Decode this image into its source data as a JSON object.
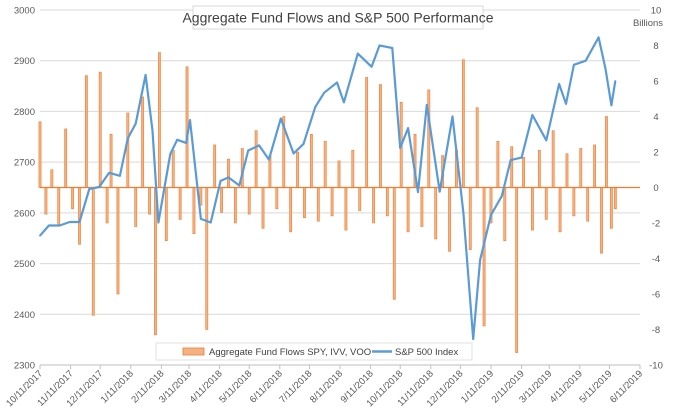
{
  "chart_data": {
    "type": "bar+line",
    "title": "Aggregate Fund Flows and S&P 500 Performance",
    "right_axis_label": "Billions",
    "left_axis": {
      "range": [
        2300,
        3000
      ],
      "ticks": [
        "2300",
        "2400",
        "2500",
        "2600",
        "2700",
        "2800",
        "2900",
        "3000"
      ]
    },
    "right_axis": {
      "range": [
        -10,
        10
      ],
      "ticks": [
        "-10",
        "-8",
        "-6",
        "-4",
        "-2",
        "0",
        "2",
        "4",
        "6",
        "8",
        "10"
      ]
    },
    "x_axis": {
      "range": [
        "10/11/2017",
        "6/11/2019"
      ],
      "ticks": [
        "10/11/2017",
        "11/11/2017",
        "12/11/2017",
        "1/11/2018",
        "2/11/2018",
        "3/11/2018",
        "4/11/2018",
        "5/11/2018",
        "6/11/2018",
        "7/11/2018",
        "8/11/2018",
        "9/11/2018",
        "10/11/2018",
        "11/11/2018",
        "12/11/2018",
        "1/11/2019",
        "2/11/2019",
        "3/11/2019",
        "4/11/2019",
        "5/11/2019",
        "6/11/2019"
      ]
    },
    "legend": {
      "position": "bottom",
      "entries": [
        "Aggregate Fund Flows SPY, IVV, VOO",
        "S&P 500 Index"
      ]
    },
    "grid": "horizontal",
    "colors": {
      "flows": "#ED7D31",
      "flows_fill": "#F4B183",
      "index": "#5B9BD5",
      "grid": "#D9D9D9",
      "axis_text": "#595959",
      "zero_line": "#ED7D31"
    },
    "series": [
      {
        "name": "S&P 500 Index",
        "axis": "left",
        "type": "line",
        "points": [
          [
            "10/11/2017",
            2555
          ],
          [
            "10/20/2017",
            2575
          ],
          [
            "10/31/2017",
            2575
          ],
          [
            "11/10/2017",
            2582
          ],
          [
            "11/20/2017",
            2582
          ],
          [
            "11/30/2017",
            2647
          ],
          [
            "12/10/2017",
            2651
          ],
          [
            "12/20/2017",
            2679
          ],
          [
            "12/31/2017",
            2673
          ],
          [
            "1/8/2018",
            2747
          ],
          [
            "1/16/2018",
            2776
          ],
          [
            "1/26/2018",
            2872
          ],
          [
            "2/2/2018",
            2762
          ],
          [
            "2/8/2018",
            2581
          ],
          [
            "2/20/2018",
            2716
          ],
          [
            "2/27/2018",
            2744
          ],
          [
            "3/8/2018",
            2738
          ],
          [
            "3/12/2018",
            2783
          ],
          [
            "3/23/2018",
            2588
          ],
          [
            "4/2/2018",
            2581
          ],
          [
            "4/12/2018",
            2663
          ],
          [
            "4/20/2018",
            2670
          ],
          [
            "5/1/2018",
            2654
          ],
          [
            "5/10/2018",
            2723
          ],
          [
            "5/21/2018",
            2733
          ],
          [
            "5/31/2018",
            2705
          ],
          [
            "6/12/2018",
            2786
          ],
          [
            "6/25/2018",
            2717
          ],
          [
            "7/5/2018",
            2736
          ],
          [
            "7/17/2018",
            2809
          ],
          [
            "7/26/2018",
            2837
          ],
          [
            "8/8/2018",
            2857
          ],
          [
            "8/15/2018",
            2818
          ],
          [
            "8/29/2018",
            2914
          ],
          [
            "9/12/2018",
            2888
          ],
          [
            "9/20/2018",
            2930
          ],
          [
            "10/3/2018",
            2925
          ],
          [
            "10/11/2018",
            2728
          ],
          [
            "10/19/2018",
            2767
          ],
          [
            "10/29/2018",
            2641
          ],
          [
            "11/7/2018",
            2813
          ],
          [
            "11/20/2018",
            2642
          ],
          [
            "12/3/2018",
            2790
          ],
          [
            "12/14/2018",
            2600
          ],
          [
            "12/24/2018",
            2351
          ],
          [
            "12/31/2018",
            2507
          ],
          [
            "1/11/2019",
            2596
          ],
          [
            "1/22/2019",
            2633
          ],
          [
            "1/31/2019",
            2704
          ],
          [
            "2/11/2019",
            2709
          ],
          [
            "2/22/2019",
            2793
          ],
          [
            "3/8/2019",
            2743
          ],
          [
            "3/21/2019",
            2854
          ],
          [
            "3/28/2019",
            2815
          ],
          [
            "4/5/2019",
            2892
          ],
          [
            "4/17/2019",
            2900
          ],
          [
            "4/30/2019",
            2946
          ],
          [
            "5/7/2019",
            2884
          ],
          [
            "5/13/2019",
            2812
          ],
          [
            "5/17/2019",
            2860
          ]
        ]
      },
      {
        "name": "Aggregate Fund Flows SPY, IVV, VOO",
        "axis": "right",
        "type": "bar",
        "points": [
          [
            "10/11/2017",
            3.7
          ],
          [
            "10/17/2017",
            -1.5
          ],
          [
            "10/23/2017",
            1.0
          ],
          [
            "10/30/2017",
            -2.1
          ],
          [
            "11/6/2017",
            3.3
          ],
          [
            "11/13/2017",
            -1.2
          ],
          [
            "11/20/2017",
            -3.2
          ],
          [
            "11/27/2017",
            6.3
          ],
          [
            "12/4/2017",
            -7.2
          ],
          [
            "12/11/2017",
            6.5
          ],
          [
            "12/18/2017",
            -2.0
          ],
          [
            "12/22/2017",
            3.0
          ],
          [
            "12/29/2017",
            -6.0
          ],
          [
            "1/8/2018",
            4.2
          ],
          [
            "1/16/2018",
            -2.2
          ],
          [
            "1/23/2018",
            5.1
          ],
          [
            "1/30/2018",
            -1.5
          ],
          [
            "2/5/2018",
            -8.3
          ],
          [
            "2/9/2018",
            7.6
          ],
          [
            "2/16/2018",
            -3.0
          ],
          [
            "2/23/2018",
            2.1
          ],
          [
            "3/2/2018",
            -1.8
          ],
          [
            "3/9/2018",
            6.8
          ],
          [
            "3/16/2018",
            -2.6
          ],
          [
            "3/23/2018",
            -1.0
          ],
          [
            "3/29/2018",
            -8.0
          ],
          [
            "4/6/2018",
            2.4
          ],
          [
            "4/13/2018",
            -1.4
          ],
          [
            "4/20/2018",
            1.6
          ],
          [
            "4/27/2018",
            -2.0
          ],
          [
            "5/4/2018",
            2.2
          ],
          [
            "5/11/2018",
            -1.5
          ],
          [
            "5/18/2018",
            3.2
          ],
          [
            "5/25/2018",
            -2.3
          ],
          [
            "6/1/2018",
            1.8
          ],
          [
            "6/8/2018",
            -1.2
          ],
          [
            "6/15/2018",
            4.0
          ],
          [
            "6/22/2018",
            -2.5
          ],
          [
            "6/29/2018",
            2.0
          ],
          [
            "7/6/2018",
            -1.7
          ],
          [
            "7/13/2018",
            3.0
          ],
          [
            "7/20/2018",
            -1.9
          ],
          [
            "7/27/2018",
            2.6
          ],
          [
            "8/3/2018",
            -1.6
          ],
          [
            "8/10/2018",
            1.5
          ],
          [
            "8/17/2018",
            -2.4
          ],
          [
            "8/24/2018",
            2.1
          ],
          [
            "8/31/2018",
            -1.3
          ],
          [
            "9/7/2018",
            6.2
          ],
          [
            "9/14/2018",
            -2.0
          ],
          [
            "9/21/2018",
            5.8
          ],
          [
            "9/28/2018",
            -1.6
          ],
          [
            "10/5/2018",
            -6.3
          ],
          [
            "10/12/2018",
            4.8
          ],
          [
            "10/19/2018",
            -2.5
          ],
          [
            "10/26/2018",
            3.0
          ],
          [
            "11/2/2018",
            -2.2
          ],
          [
            "11/9/2018",
            5.5
          ],
          [
            "11/16/2018",
            -2.9
          ],
          [
            "11/23/2018",
            1.8
          ],
          [
            "11/30/2018",
            -3.6
          ],
          [
            "12/7/2018",
            2.1
          ],
          [
            "12/14/2018",
            7.2
          ],
          [
            "12/21/2018",
            -3.5
          ],
          [
            "12/28/2018",
            4.5
          ],
          [
            "1/4/2019",
            -7.8
          ],
          [
            "1/11/2019",
            -2.0
          ],
          [
            "1/18/2019",
            2.6
          ],
          [
            "1/25/2019",
            -3.0
          ],
          [
            "2/1/2019",
            2.3
          ],
          [
            "2/6/2019",
            -9.3
          ],
          [
            "2/13/2019",
            1.7
          ],
          [
            "2/22/2019",
            -2.4
          ],
          [
            "3/1/2019",
            2.1
          ],
          [
            "3/8/2019",
            -1.8
          ],
          [
            "3/15/2019",
            3.2
          ],
          [
            "3/22/2019",
            -2.5
          ],
          [
            "3/29/2019",
            1.9
          ],
          [
            "4/5/2019",
            -1.6
          ],
          [
            "4/12/2019",
            2.2
          ],
          [
            "4/19/2019",
            -1.9
          ],
          [
            "4/26/2019",
            2.4
          ],
          [
            "5/3/2019",
            -3.7
          ],
          [
            "5/8/2019",
            4.0
          ],
          [
            "5/13/2019",
            -2.3
          ],
          [
            "5/17/2019",
            -1.2
          ]
        ]
      }
    ]
  }
}
